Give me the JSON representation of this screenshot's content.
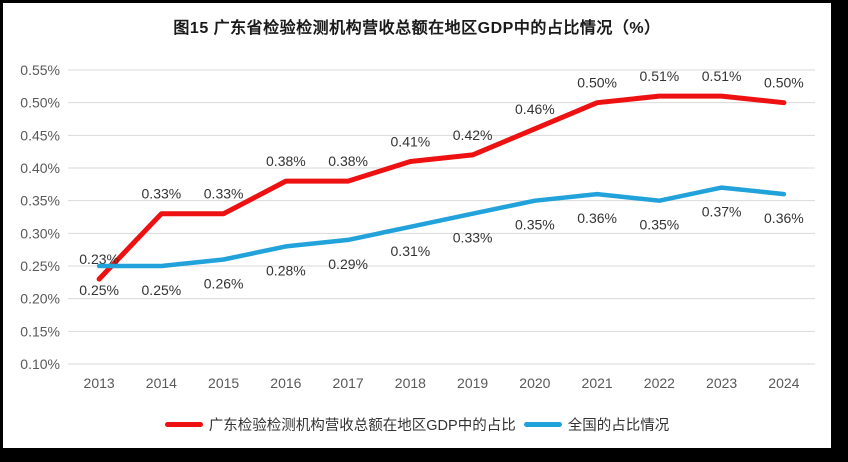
{
  "frame": {
    "border_color": "#000000",
    "background": "#ffffff"
  },
  "title": "图15  广东省检验检测机构营收总额在地区GDP中的占比情况（%）",
  "chart_data": {
    "type": "line",
    "title": "图15  广东省检验检测机构营收总额在地区GDP中的占比情况（%）",
    "categories": [
      "2013",
      "2014",
      "2015",
      "2016",
      "2017",
      "2018",
      "2019",
      "2020",
      "2021",
      "2022",
      "2023",
      "2024"
    ],
    "series": [
      {
        "name": "广东检验检测机构营收总额在地区GDP中的占比",
        "color": "#ED1111",
        "values": [
          0.23,
          0.33,
          0.33,
          0.38,
          0.38,
          0.41,
          0.42,
          0.46,
          0.5,
          0.51,
          0.51,
          0.5
        ],
        "labels": [
          "0.23%",
          "0.33%",
          "0.33%",
          "0.38%",
          "0.38%",
          "0.41%",
          "0.42%",
          "0.46%",
          "0.50%",
          "0.51%",
          "0.51%",
          "0.50%"
        ],
        "label_position": "above"
      },
      {
        "name": "全国的占比情况",
        "color": "#21A2DB",
        "values": [
          0.25,
          0.25,
          0.26,
          0.28,
          0.29,
          0.31,
          0.33,
          0.35,
          0.36,
          0.35,
          0.37,
          0.36
        ],
        "labels": [
          "0.25%",
          "0.25%",
          "0.26%",
          "0.28%",
          "0.29%",
          "0.31%",
          "0.33%",
          "0.35%",
          "0.36%",
          "0.35%",
          "0.37%",
          "0.36%"
        ],
        "label_position": "below"
      }
    ],
    "xlabel": "",
    "ylabel": "",
    "ylim": [
      0.1,
      0.55
    ],
    "ytick_step": 0.05,
    "ytick_labels": [
      "0.10%",
      "0.15%",
      "0.20%",
      "0.25%",
      "0.30%",
      "0.35%",
      "0.40%",
      "0.45%",
      "0.50%",
      "0.55%"
    ],
    "value_format": "percent-2dp",
    "grid": true,
    "legend_position": "bottom",
    "gridline_color": "#D9D9D9",
    "axis_label_color": "#595959",
    "data_label_color": "#333333"
  }
}
